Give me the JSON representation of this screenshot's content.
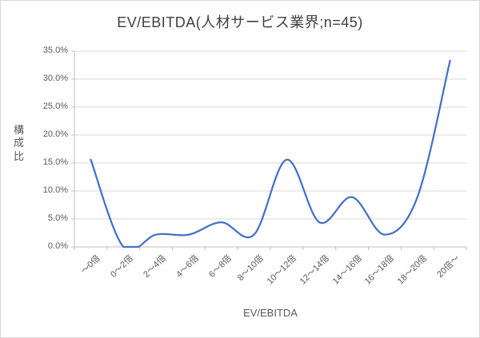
{
  "chart_data": {
    "type": "line",
    "title": "EV/EBITDA(人材サービス業界;n=45)",
    "xlabel": "EV/EBITDA",
    "ylabel": "構成比",
    "categories": [
      "～0倍",
      "0～2倍",
      "2～4倍",
      "4～6倍",
      "6～8倍",
      "8～10倍",
      "10～12倍",
      "12～14倍",
      "14～16倍",
      "16～18倍",
      "18～20倍",
      "20倍～"
    ],
    "series": [
      {
        "name": "構成比",
        "values": [
          15.6,
          0.0,
          2.2,
          2.2,
          4.4,
          2.2,
          15.6,
          4.4,
          8.9,
          2.2,
          8.9,
          33.3
        ]
      }
    ],
    "ylim": [
      0,
      35
    ],
    "ytick_step": 5,
    "yticks": [
      "0.0%",
      "5.0%",
      "10.0%",
      "15.0%",
      "20.0%",
      "25.0%",
      "30.0%",
      "35.0%"
    ],
    "grid": true,
    "legend": "none",
    "line_smooth": true
  },
  "colors": {
    "line": "#4472C4",
    "gridline": "#D9D9D9",
    "axis": "#BFBFBF",
    "text": "#595959",
    "title_text": "#404040",
    "background": "#FFFFFF",
    "border": "#D9D9D9"
  }
}
